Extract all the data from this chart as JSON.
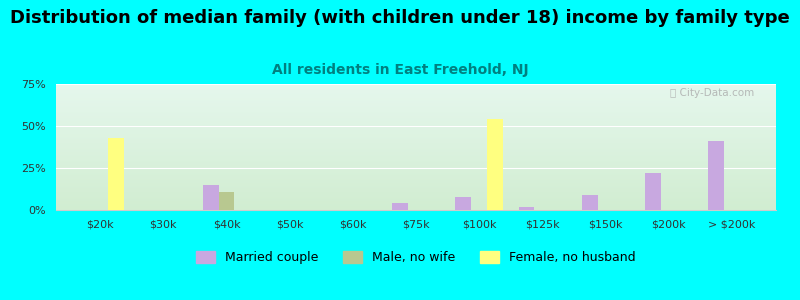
{
  "title": "Distribution of median family (with children under 18) income by family type",
  "subtitle": "All residents in East Freehold, NJ",
  "categories": [
    "$20k",
    "$30k",
    "$40k",
    "$50k",
    "$60k",
    "$75k",
    "$100k",
    "$125k",
    "$150k",
    "$200k",
    "> $200k"
  ],
  "married_couple": [
    0,
    0,
    15,
    0,
    0,
    4,
    8,
    2,
    9,
    22,
    41
  ],
  "male_no_wife": [
    0,
    0,
    11,
    0,
    0,
    0,
    0,
    0,
    0,
    0,
    0
  ],
  "female_no_husband": [
    43,
    0,
    0,
    0,
    0,
    0,
    54,
    0,
    0,
    0,
    0
  ],
  "married_color": "#c8a8e0",
  "male_color": "#b8c890",
  "female_color": "#ffff80",
  "bg_color": "#00ffff",
  "title_fontsize": 13,
  "subtitle_fontsize": 10,
  "subtitle_color": "#008080",
  "ylim": [
    0,
    75
  ],
  "yticks": [
    0,
    25,
    50,
    75
  ],
  "ytick_labels": [
    "0%",
    "25%",
    "50%",
    "75%"
  ],
  "bar_width": 0.25,
  "legend_labels": [
    "Married couple",
    "Male, no wife",
    "Female, no husband"
  ],
  "watermark": "ⓘ City-Data.com"
}
